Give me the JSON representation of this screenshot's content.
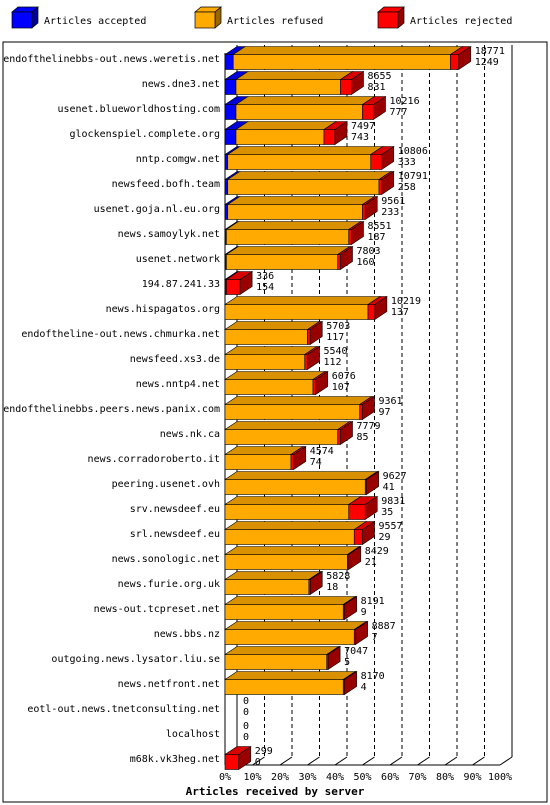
{
  "chart_data": {
    "type": "bar",
    "orientation": "horizontal",
    "stacked": true,
    "xlabel": "Articles received by server",
    "x_tick_labels": [
      "0%",
      "10%",
      "20%",
      "30%",
      "40%",
      "50%",
      "60%",
      "70%",
      "80%",
      "90%",
      "100%"
    ],
    "xlim": [
      0,
      100
    ],
    "legend_placement": "top",
    "grid": true,
    "legend": [
      {
        "key": "accepted",
        "label": "Articles accepted",
        "color": "#0000ff"
      },
      {
        "key": "refused",
        "label": "Articles refused",
        "color": "#ffaa00"
      },
      {
        "key": "rejected",
        "label": "Articles rejected",
        "color": "#ff0000"
      }
    ],
    "rows": [
      {
        "server": "endofthelinebbs-out.news.weretis.net",
        "total": "18771",
        "rejected_count": "1249",
        "accepted": 3,
        "refused": 79,
        "rejected": 3
      },
      {
        "server": "news.dne3.net",
        "total": "8655",
        "rejected_count": "831",
        "accepted": 4,
        "refused": 38,
        "rejected": 4
      },
      {
        "server": "usenet.blueworldhosting.com",
        "total": "10216",
        "rejected_count": "777",
        "accepted": 4,
        "refused": 46,
        "rejected": 4
      },
      {
        "server": "glockenspiel.complete.org",
        "total": "7497",
        "rejected_count": "743",
        "accepted": 4,
        "refused": 32,
        "rejected": 4
      },
      {
        "server": "nntp.comgw.net",
        "total": "10806",
        "rejected_count": "333",
        "accepted": 1,
        "refused": 52,
        "rejected": 4
      },
      {
        "server": "newsfeed.bofh.team",
        "total": "10791",
        "rejected_count": "258",
        "accepted": 1,
        "refused": 55,
        "rejected": 1
      },
      {
        "server": "usenet.goja.nl.eu.org",
        "total": "9561",
        "rejected_count": "233",
        "accepted": 1,
        "refused": 49,
        "rejected": 1
      },
      {
        "server": "news.samoylyk.net",
        "total": "8551",
        "rejected_count": "187",
        "accepted": 0.5,
        "refused": 44.5,
        "rejected": 1
      },
      {
        "server": "usenet.network",
        "total": "7803",
        "rejected_count": "160",
        "accepted": 0.5,
        "refused": 40.5,
        "rejected": 1
      },
      {
        "server": "194.87.241.33",
        "total": "336",
        "rejected_count": "154",
        "accepted": 0.5,
        "refused": 0,
        "rejected": 5
      },
      {
        "server": "news.hispagatos.org",
        "total": "10219",
        "rejected_count": "137",
        "accepted": 0,
        "refused": 52,
        "rejected": 2.5
      },
      {
        "server": "endoftheline-out.news.chmurka.net",
        "total": "5703",
        "rejected_count": "117",
        "accepted": 0,
        "refused": 30,
        "rejected": 1
      },
      {
        "server": "newsfeed.xs3.de",
        "total": "5540",
        "rejected_count": "112",
        "accepted": 0,
        "refused": 29,
        "rejected": 1
      },
      {
        "server": "news.nntp4.net",
        "total": "6076",
        "rejected_count": "107",
        "accepted": 0,
        "refused": 32,
        "rejected": 1
      },
      {
        "server": "endofthelinebbs.peers.news.panix.com",
        "total": "9361",
        "rejected_count": "97",
        "accepted": 0,
        "refused": 49,
        "rejected": 1
      },
      {
        "server": "news.nk.ca",
        "total": "7779",
        "rejected_count": "85",
        "accepted": 0,
        "refused": 41,
        "rejected": 1
      },
      {
        "server": "news.corradoroberto.it",
        "total": "4574",
        "rejected_count": "74",
        "accepted": 0,
        "refused": 24,
        "rejected": 1
      },
      {
        "server": "peering.usenet.ovh",
        "total": "9627",
        "rejected_count": "41",
        "accepted": 0,
        "refused": 51,
        "rejected": 0.5
      },
      {
        "server": "srv.newsdeef.eu",
        "total": "9831",
        "rejected_count": "35",
        "accepted": 0,
        "refused": 45,
        "rejected": 6
      },
      {
        "server": "srl.newsdeef.eu",
        "total": "9557",
        "rejected_count": "29",
        "accepted": 0,
        "refused": 47,
        "rejected": 3
      },
      {
        "server": "news.sonologic.net",
        "total": "8429",
        "rejected_count": "21",
        "accepted": 0,
        "refused": 44.5,
        "rejected": 0.5
      },
      {
        "server": "news.furie.org.uk",
        "total": "5828",
        "rejected_count": "18",
        "accepted": 0,
        "refused": 30.5,
        "rejected": 0.5
      },
      {
        "server": "news-out.tcpreset.net",
        "total": "8191",
        "rejected_count": "9",
        "accepted": 0,
        "refused": 43,
        "rejected": 0.5
      },
      {
        "server": "news.bbs.nz",
        "total": "8887",
        "rejected_count": "7",
        "accepted": 0,
        "refused": 47,
        "rejected": 0.5
      },
      {
        "server": "outgoing.news.lysator.liu.se",
        "total": "7047",
        "rejected_count": "5",
        "accepted": 0,
        "refused": 37,
        "rejected": 0.5
      },
      {
        "server": "news.netfront.net",
        "total": "8170",
        "rejected_count": "4",
        "accepted": 0,
        "refused": 43,
        "rejected": 0.5
      },
      {
        "server": "eotl-out.news.tnetconsulting.net",
        "total": "0",
        "rejected_count": "0",
        "accepted": 0,
        "refused": 0,
        "rejected": 0
      },
      {
        "server": "localhost",
        "total": "0",
        "rejected_count": "0",
        "accepted": 0,
        "refused": 0,
        "rejected": 0
      },
      {
        "server": "m68k.vk3heg.net",
        "total": "299",
        "rejected_count": "0",
        "accepted": 0,
        "refused": 0,
        "rejected": 5
      }
    ]
  }
}
